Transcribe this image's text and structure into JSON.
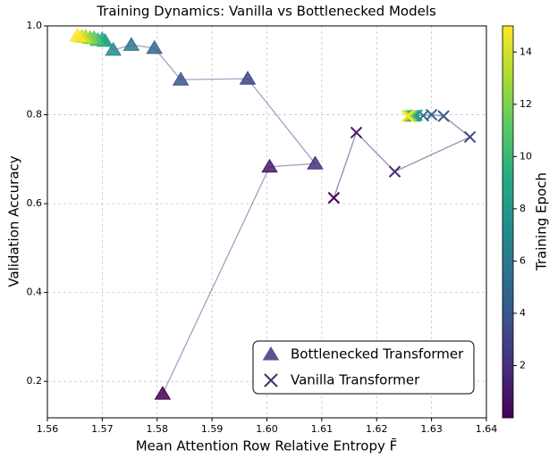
{
  "chart_data": {
    "type": "scatter",
    "title": "Training Dynamics: Vanilla vs Bottlenecked Models",
    "xlabel": "Mean Attention Row Relative Entropy F̄",
    "ylabel": "Validation Accuracy",
    "colorbar_label": "Training Epoch",
    "colormap": "viridis",
    "clim": [
      0,
      15
    ],
    "cticks": [
      2,
      4,
      6,
      8,
      10,
      12,
      14
    ],
    "xlim": [
      1.56,
      1.64
    ],
    "xticks": [
      1.56,
      1.57,
      1.58,
      1.59,
      {
        "value": 1.6,
        "label": "1.60"
      },
      1.61,
      1.62,
      1.63,
      1.64
    ],
    "ylim": [
      0.118,
      1.0
    ],
    "yticks": [
      0.2,
      0.4,
      0.6,
      0.8,
      {
        "value": 1.0,
        "label": "1.0"
      }
    ],
    "grid": true,
    "legend": "lower right",
    "series": [
      {
        "name": "Bottlenecked Transformer",
        "marker": "triangle",
        "color": "#5b5190",
        "x": [
          1.581,
          1.6005,
          1.6088,
          1.5965,
          1.5843,
          1.5795,
          1.5753,
          1.572,
          1.5705,
          1.57,
          1.5692,
          1.5685,
          1.5678,
          1.567,
          1.5663,
          1.5655
        ],
        "values": [
          0.172,
          0.683,
          0.69,
          0.881,
          0.879,
          0.95,
          0.957,
          0.946,
          0.966,
          0.97,
          0.968,
          0.972,
          0.973,
          0.975,
          0.976,
          0.978
        ],
        "epochs": [
          0,
          1,
          2,
          3,
          4,
          5,
          6,
          7,
          8,
          9,
          10,
          11,
          12,
          13,
          14,
          15
        ]
      },
      {
        "name": "Vanilla Transformer",
        "marker": "x",
        "color": "#4a2a6e",
        "x": [
          1.6122,
          1.6163,
          1.6233,
          1.637,
          1.6322,
          1.63,
          1.6285,
          1.6273,
          1.627,
          1.6268,
          1.6265,
          1.6263,
          1.6262,
          1.626,
          1.6258,
          1.6256
        ],
        "values": [
          0.613,
          0.76,
          0.672,
          0.75,
          0.797,
          0.8,
          0.798,
          0.799,
          0.797,
          0.798,
          0.797,
          0.798,
          0.797,
          0.797,
          0.798,
          0.797
        ],
        "epochs": [
          0,
          1,
          2,
          3,
          4,
          5,
          6,
          7,
          8,
          9,
          10,
          11,
          12,
          13,
          14,
          15
        ]
      }
    ]
  }
}
